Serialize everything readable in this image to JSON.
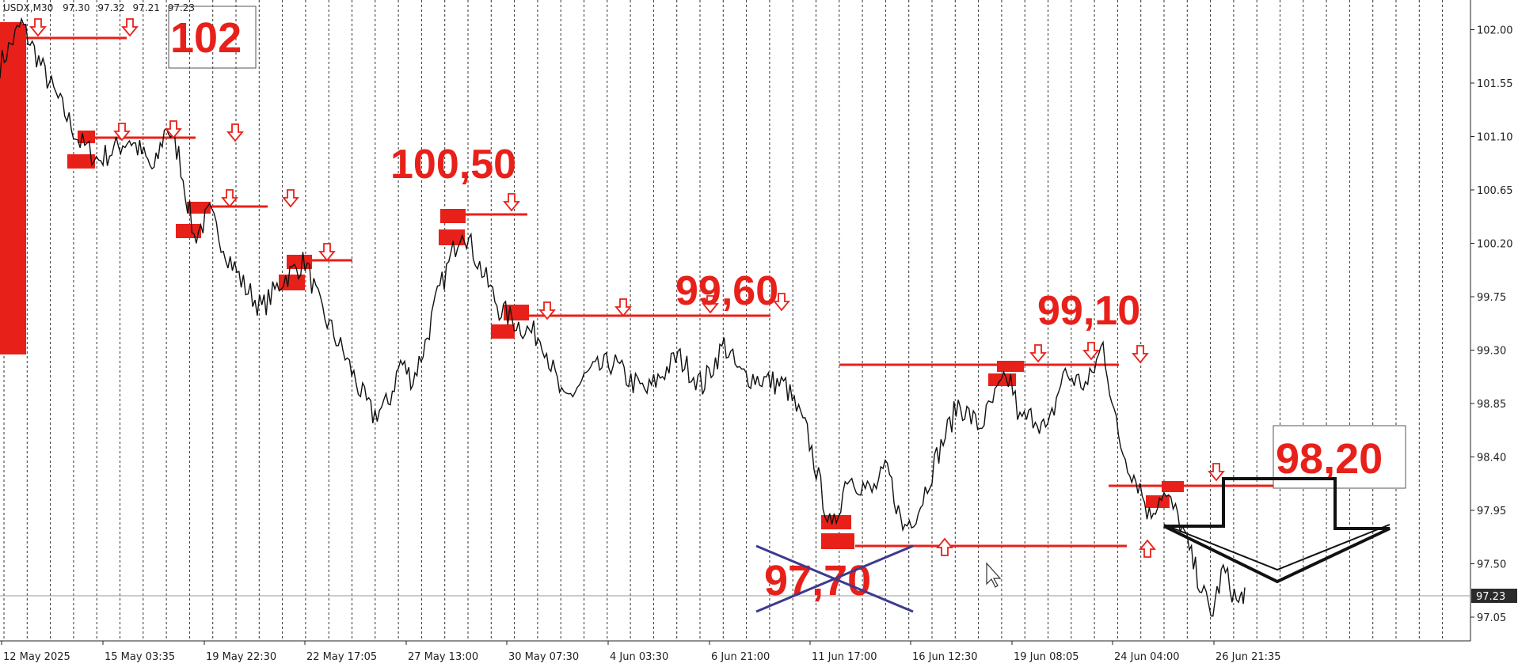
{
  "chart_data": {
    "type": "line",
    "symbol": "USDX,M30",
    "header_ohlc": [
      "97.30",
      "97.32",
      "97.21",
      "97.23"
    ],
    "ylim": [
      96.85,
      102.25
    ],
    "grid": "vertical dashed lines",
    "y_ticks": [
      "102.00",
      "101.55",
      "101.10",
      "100.65",
      "100.20",
      "99.75",
      "99.30",
      "98.85",
      "98.40",
      "97.95",
      "97.50",
      "97.05"
    ],
    "x_ticks": [
      "12 May 2025",
      "15 May 03:35",
      "19 May 22:30",
      "22 May 17:05",
      "27 May 13:00",
      "30 May 07:30",
      "4 Jun 03:30",
      "6 Jun 21:00",
      "11 Jun 17:00",
      "16 Jun 12:30",
      "19 Jun 08:05",
      "24 Jun 04:00",
      "26 Jun 21:35"
    ],
    "current_price": "97.23",
    "series": [
      {
        "x": [
          0,
          0.7,
          1.6,
          2.6,
          3.2,
          4.2,
          4.6,
          5.0,
          5.4,
          5.8,
          6.3,
          6.8,
          7.4,
          7.9,
          8.5,
          9.2,
          9.9,
          10.4,
          11.2,
          11.7,
          12.1,
          12.6,
          13.0,
          13.4,
          13.8,
          14.2,
          15.0,
          15.5,
          16.2,
          16.9,
          17.6,
          18.3,
          19.1,
          19.9,
          20.4,
          21.0,
          22.0,
          22.8,
          23.5,
          24.0,
          24.8,
          25.5,
          26.2,
          27.0,
          27.5,
          28.3,
          28.8,
          29.3,
          29.8,
          30.4,
          31.1,
          31.8,
          32.5,
          32.8,
          33.1,
          33.6,
          34.0,
          34.5,
          35.3,
          35.8,
          36.3,
          36.6,
          37.0,
          37.3,
          37.7,
          38.0,
          38.3,
          38.6,
          39.0,
          39.3,
          39.7,
          40.2,
          40.4
        ],
        "values": [
          101.7,
          102.05,
          101.55,
          101.05,
          100.9,
          101.08,
          100.96,
          100.8,
          101.2,
          100.95,
          100.25,
          100.45,
          100.1,
          99.85,
          99.65,
          99.9,
          100.05,
          99.65,
          99.25,
          98.95,
          98.75,
          98.85,
          99.2,
          99.05,
          99.35,
          99.75,
          100.35,
          100.05,
          99.65,
          99.5,
          99.4,
          98.85,
          99.1,
          99.2,
          99.05,
          98.95,
          99.25,
          99.0,
          99.35,
          99.1,
          99.05,
          99.0,
          98.6,
          97.75,
          98.25,
          98.1,
          98.3,
          97.8,
          97.95,
          98.4,
          98.85,
          98.65,
          99.0,
          99.05,
          98.7,
          98.75,
          98.6,
          99.1,
          99.0,
          99.35,
          98.55,
          98.35,
          98.15,
          97.9,
          98.1,
          98.0,
          97.85,
          97.6,
          97.3,
          97.05,
          97.45,
          97.15,
          97.3
        ]
      }
    ],
    "annotations": [
      "102",
      "100,50",
      "99,60",
      "99,10",
      "98,20",
      "97,70"
    ]
  },
  "icons": [
    "down-arrow-icon",
    "up-arrow-icon",
    "cursor-icon",
    "big-down-arrow-icon",
    "cross-out-icon"
  ],
  "colors": {
    "annotation": "#e8201a",
    "line": "#111111",
    "cross": "#3b3b8f"
  }
}
